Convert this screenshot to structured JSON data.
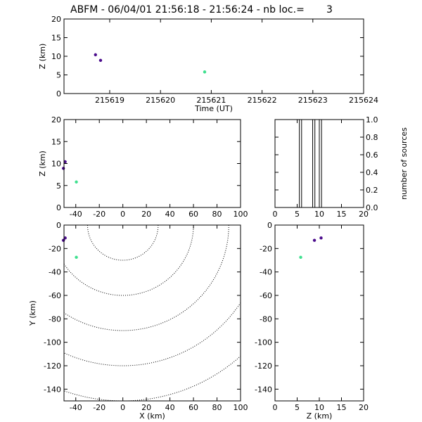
{
  "title": "ABFM - 06/04/01 21:56:18 - 21:56:24 - nb loc.=       3",
  "colors": {
    "purple": "#4b0c8c",
    "green": "#3fe08f",
    "axis": "#000000"
  },
  "chart_data": [
    {
      "id": "time_height",
      "type": "scatter",
      "xlabel": "Time (UT)",
      "ylabel": "Z (km)",
      "xlim": [
        215618.1,
        215624
      ],
      "ylim": [
        0,
        20
      ],
      "xticks": [
        215619,
        215620,
        215621,
        215622,
        215623,
        215624
      ],
      "yticks": [
        0,
        5,
        10,
        15,
        20
      ],
      "points": [
        {
          "x": 215618.72,
          "y": 10.4,
          "color": "#4b0c8c"
        },
        {
          "x": 215618.82,
          "y": 8.9,
          "color": "#4b0c8c"
        },
        {
          "x": 215620.87,
          "y": 5.8,
          "color": "#3fe08f"
        }
      ]
    },
    {
      "id": "x_height",
      "type": "scatter",
      "xlabel": "",
      "ylabel": "Z (km)",
      "xlim": [
        -50,
        100
      ],
      "ylim": [
        0,
        20
      ],
      "xticks": [
        -40,
        -20,
        0,
        20,
        40,
        60,
        80,
        100
      ],
      "yticks": [
        0,
        5,
        10,
        15,
        20
      ],
      "points": [
        {
          "x": -49,
          "y": 10.4,
          "color": "#4b0c8c"
        },
        {
          "x": -50.5,
          "y": 8.9,
          "color": "#4b0c8c"
        },
        {
          "x": -39.5,
          "y": 5.8,
          "color": "#3fe08f"
        }
      ]
    },
    {
      "id": "height_histogram",
      "type": "bar",
      "xlabel": "",
      "ylabel": "number of sources",
      "xlim": [
        0,
        20
      ],
      "ylim": [
        0,
        1
      ],
      "xticks": [
        0,
        5,
        10,
        15,
        20
      ],
      "yticks": [
        0.0,
        0.2,
        0.4,
        0.6,
        0.8,
        1.0
      ],
      "ytick_labels": [
        "0.0",
        "0.2",
        "0.4",
        "0.6",
        "0.8",
        "1.0"
      ],
      "bin_width": 0.5,
      "bars": [
        {
          "x0": 5.5,
          "x1": 6.0,
          "value": 1
        },
        {
          "x0": 8.5,
          "x1": 9.0,
          "value": 1
        },
        {
          "x0": 10.0,
          "x1": 10.5,
          "value": 1
        }
      ]
    },
    {
      "id": "plan_view",
      "type": "scatter",
      "xlabel": "X (km)",
      "ylabel": "Y (km)",
      "xlim": [
        -50,
        100
      ],
      "ylim": [
        -150,
        0
      ],
      "xticks": [
        -40,
        -20,
        0,
        20,
        40,
        60,
        80,
        100
      ],
      "yticks": [
        -140,
        -120,
        -100,
        -80,
        -60,
        -40,
        -20,
        0
      ],
      "range_rings_km": [
        30,
        60,
        90,
        120,
        150
      ],
      "ring_center": [
        0,
        0
      ],
      "points": [
        {
          "x": -49,
          "y": -11,
          "color": "#4b0c8c"
        },
        {
          "x": -50.5,
          "y": -13,
          "color": "#4b0c8c"
        },
        {
          "x": -39.5,
          "y": -27.5,
          "color": "#3fe08f"
        }
      ]
    },
    {
      "id": "height_y",
      "type": "scatter",
      "xlabel": "Z (km)",
      "ylabel": "",
      "xlim": [
        0,
        20
      ],
      "ylim": [
        -150,
        0
      ],
      "xticks": [
        0,
        5,
        10,
        15,
        20
      ],
      "yticks": [
        -140,
        -120,
        -100,
        -80,
        -60,
        -40,
        -20,
        0
      ],
      "points": [
        {
          "x": 10.4,
          "y": -11,
          "color": "#4b0c8c"
        },
        {
          "x": 8.9,
          "y": -13,
          "color": "#4b0c8c"
        },
        {
          "x": 5.8,
          "y": -27.5,
          "color": "#3fe08f"
        }
      ]
    }
  ]
}
